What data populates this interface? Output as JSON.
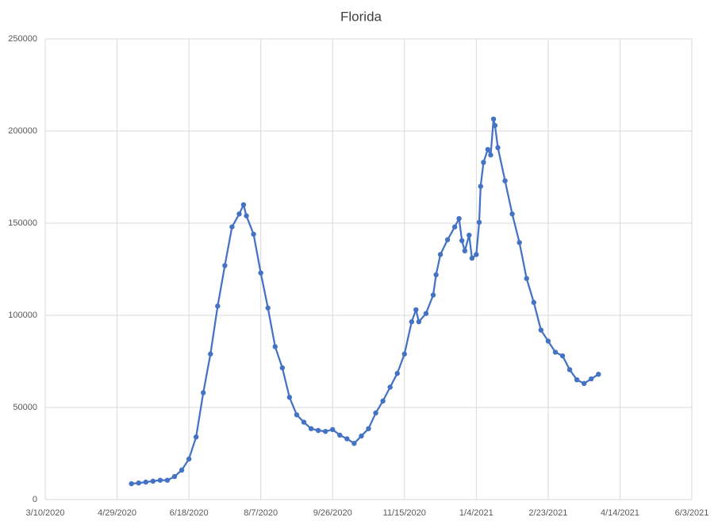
{
  "chart_data": {
    "type": "line",
    "title": "Florida",
    "x": [
      "5/9/2020",
      "5/14/2020",
      "5/19/2020",
      "5/24/2020",
      "5/29/2020",
      "6/3/2020",
      "6/8/2020",
      "6/13/2020",
      "6/18/2020",
      "6/23/2020",
      "6/28/2020",
      "7/3/2020",
      "7/8/2020",
      "7/13/2020",
      "7/18/2020",
      "7/23/2020",
      "7/26/2020",
      "7/28/2020",
      "8/2/2020",
      "8/7/2020",
      "8/12/2020",
      "8/17/2020",
      "8/22/2020",
      "8/27/2020",
      "9/1/2020",
      "9/6/2020",
      "9/11/2020",
      "9/16/2020",
      "9/21/2020",
      "9/26/2020",
      "10/1/2020",
      "10/6/2020",
      "10/11/2020",
      "10/16/2020",
      "10/21/2020",
      "10/26/2020",
      "10/31/2020",
      "11/5/2020",
      "11/10/2020",
      "11/15/2020",
      "11/20/2020",
      "11/23/2020",
      "11/25/2020",
      "11/30/2020",
      "12/5/2020",
      "12/7/2020",
      "12/10/2020",
      "12/15/2020",
      "12/20/2020",
      "12/23/2020",
      "12/25/2020",
      "12/27/2020",
      "12/30/2020",
      "1/1/2021",
      "1/4/2021",
      "1/6/2021",
      "1/7/2021",
      "1/9/2021",
      "1/12/2021",
      "1/14/2021",
      "1/16/2021",
      "1/17/2021",
      "1/19/2021",
      "1/24/2021",
      "1/29/2021",
      "2/3/2021",
      "2/8/2021",
      "2/13/2021",
      "2/18/2021",
      "2/23/2021",
      "2/28/2021",
      "3/5/2021",
      "3/10/2021",
      "3/15/2021",
      "3/20/2021",
      "3/25/2021",
      "3/30/2021"
    ],
    "series": [
      {
        "color": "#4472c4",
        "values": [
          8600,
          9000,
          9500,
          10000,
          10500,
          10500,
          12500,
          16000,
          22000,
          34000,
          58000,
          79000,
          105000,
          127000,
          148000,
          155000,
          160000,
          154000,
          144000,
          123000,
          104000,
          83000,
          71500,
          55500,
          46000,
          42000,
          38500,
          37500,
          37000,
          38000,
          35000,
          33000,
          30500,
          34500,
          38500,
          47000,
          53500,
          61000,
          68500,
          79000,
          96500,
          103000,
          96500,
          101000,
          111000,
          122000,
          133000,
          141000,
          148000,
          152500,
          140500,
          135000,
          143500,
          131000,
          133000,
          150500,
          170000,
          183000,
          190000,
          187000,
          206500,
          203000,
          191000,
          173000,
          155000,
          139500,
          120000,
          107000,
          92000,
          86000,
          80000,
          78000,
          70500,
          65000,
          63000,
          65500,
          68000
        ]
      }
    ],
    "xlim": [
      "3/10/2020",
      "6/3/2021"
    ],
    "xticks": [
      "3/10/2020",
      "4/29/2020",
      "6/18/2020",
      "8/7/2020",
      "9/26/2020",
      "11/15/2020",
      "1/4/2021",
      "2/23/2021",
      "4/14/2021",
      "6/3/2021"
    ],
    "ylim": [
      0,
      250000
    ],
    "yticks": [
      0,
      50000,
      100000,
      150000,
      200000,
      250000
    ],
    "grid": true
  }
}
